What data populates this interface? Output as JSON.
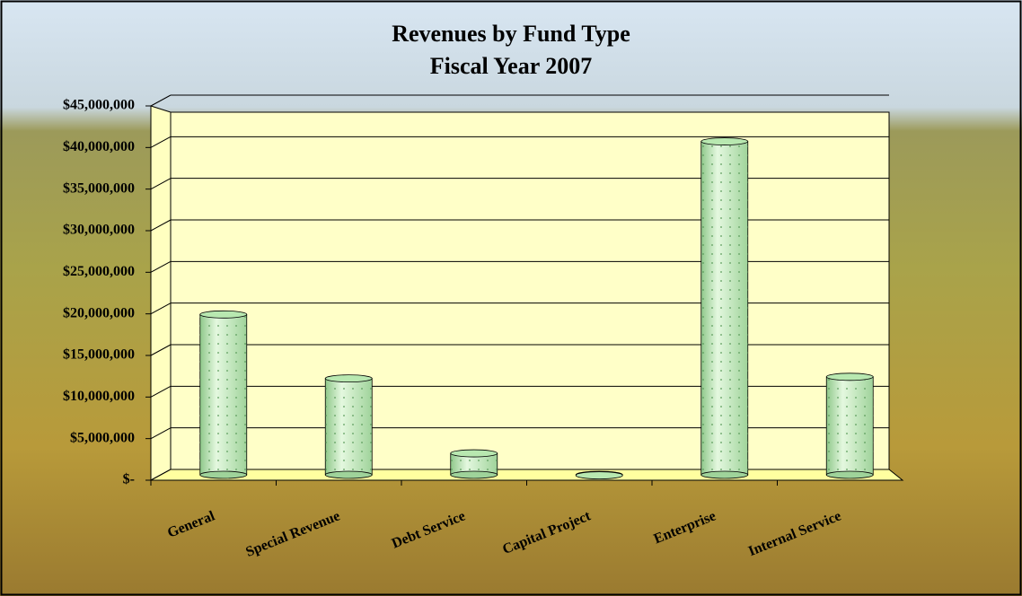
{
  "chart_data": {
    "type": "bar",
    "title": "Revenues by Fund Type",
    "subtitle": "Fiscal Year 2007",
    "categories": [
      "General",
      "Special Revenue",
      "Debt Service",
      "Capital Project",
      "Enterprise",
      "Internal Service"
    ],
    "values": [
      19500000,
      11800000,
      2800000,
      150000,
      40300000,
      12000000
    ],
    "color": "#b8e8b0",
    "ylim": [
      0,
      45000000
    ],
    "yticks": [
      {
        "value": 0,
        "label": "$-"
      },
      {
        "value": 5000000,
        "label": "$5,000,000"
      },
      {
        "value": 10000000,
        "label": "$10,000,000"
      },
      {
        "value": 15000000,
        "label": "$15,000,000"
      },
      {
        "value": 20000000,
        "label": "$20,000,000"
      },
      {
        "value": 25000000,
        "label": "$25,000,000"
      },
      {
        "value": 30000000,
        "label": "$30,000,000"
      },
      {
        "value": 35000000,
        "label": "$35,000,000"
      },
      {
        "value": 40000000,
        "label": "$40,000,000"
      },
      {
        "value": 45000000,
        "label": "$45,000,000"
      }
    ],
    "grid": true
  }
}
